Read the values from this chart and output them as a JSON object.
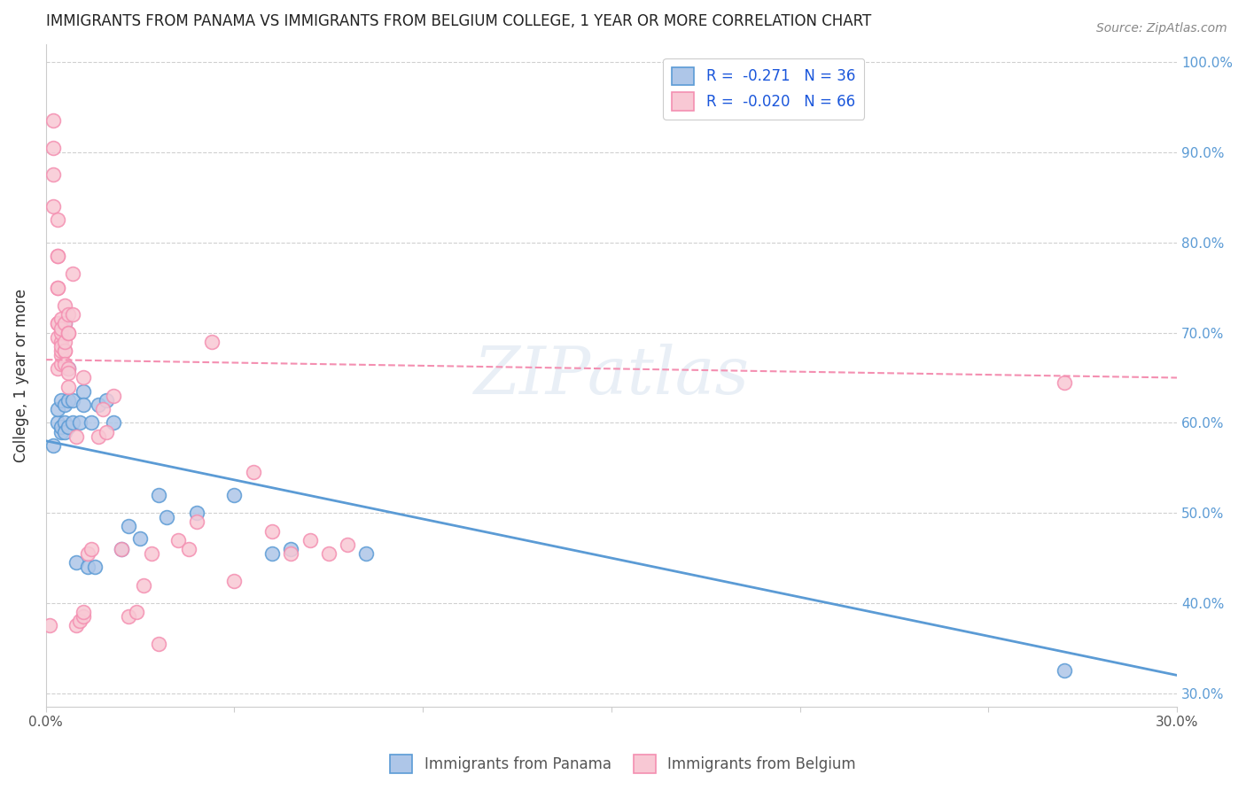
{
  "title": "IMMIGRANTS FROM PANAMA VS IMMIGRANTS FROM BELGIUM COLLEGE, 1 YEAR OR MORE CORRELATION CHART",
  "source": "Source: ZipAtlas.com",
  "ylabel": "College, 1 year or more",
  "xmin": 0.0,
  "xmax": 0.3,
  "ymin": 0.285,
  "ymax": 1.02,
  "yticks": [
    0.3,
    0.4,
    0.5,
    0.6,
    0.7,
    0.8,
    0.9,
    1.0
  ],
  "ytick_labels": [
    "30.0%",
    "40.0%",
    "50.0%",
    "60.0%",
    "70.0%",
    "80.0%",
    "90.0%",
    "100.0%"
  ],
  "xticks": [
    0.0,
    0.05,
    0.1,
    0.15,
    0.2,
    0.25,
    0.3
  ],
  "xtick_labels": [
    "0.0%",
    "",
    "",
    "",
    "",
    "",
    "30.0%"
  ],
  "blue_scatter_x": [
    0.002,
    0.003,
    0.003,
    0.004,
    0.004,
    0.004,
    0.005,
    0.005,
    0.005,
    0.005,
    0.006,
    0.006,
    0.006,
    0.007,
    0.007,
    0.008,
    0.009,
    0.01,
    0.01,
    0.011,
    0.012,
    0.013,
    0.014,
    0.016,
    0.018,
    0.02,
    0.022,
    0.025,
    0.03,
    0.032,
    0.04,
    0.05,
    0.06,
    0.065,
    0.085,
    0.27
  ],
  "blue_scatter_y": [
    0.575,
    0.6,
    0.615,
    0.59,
    0.625,
    0.595,
    0.6,
    0.59,
    0.62,
    0.71,
    0.66,
    0.625,
    0.595,
    0.6,
    0.625,
    0.445,
    0.6,
    0.635,
    0.62,
    0.44,
    0.6,
    0.44,
    0.62,
    0.625,
    0.6,
    0.46,
    0.485,
    0.472,
    0.52,
    0.495,
    0.5,
    0.52,
    0.455,
    0.46,
    0.455,
    0.325
  ],
  "pink_scatter_x": [
    0.001,
    0.002,
    0.002,
    0.002,
    0.002,
    0.003,
    0.003,
    0.003,
    0.003,
    0.003,
    0.003,
    0.003,
    0.003,
    0.003,
    0.004,
    0.004,
    0.004,
    0.004,
    0.004,
    0.004,
    0.004,
    0.004,
    0.005,
    0.005,
    0.005,
    0.005,
    0.005,
    0.005,
    0.006,
    0.006,
    0.006,
    0.006,
    0.006,
    0.006,
    0.007,
    0.007,
    0.008,
    0.008,
    0.009,
    0.01,
    0.01,
    0.01,
    0.011,
    0.012,
    0.014,
    0.015,
    0.016,
    0.018,
    0.02,
    0.022,
    0.024,
    0.026,
    0.028,
    0.03,
    0.035,
    0.038,
    0.04,
    0.044,
    0.05,
    0.055,
    0.06,
    0.065,
    0.07,
    0.075,
    0.08,
    0.27
  ],
  "pink_scatter_y": [
    0.375,
    0.905,
    0.875,
    0.935,
    0.84,
    0.825,
    0.785,
    0.75,
    0.785,
    0.75,
    0.71,
    0.71,
    0.695,
    0.66,
    0.715,
    0.69,
    0.665,
    0.675,
    0.7,
    0.68,
    0.685,
    0.705,
    0.73,
    0.71,
    0.68,
    0.68,
    0.69,
    0.665,
    0.7,
    0.66,
    0.7,
    0.72,
    0.655,
    0.64,
    0.765,
    0.72,
    0.585,
    0.375,
    0.38,
    0.65,
    0.385,
    0.39,
    0.455,
    0.46,
    0.585,
    0.615,
    0.59,
    0.63,
    0.46,
    0.385,
    0.39,
    0.42,
    0.455,
    0.355,
    0.47,
    0.46,
    0.49,
    0.69,
    0.425,
    0.545,
    0.48,
    0.455,
    0.47,
    0.455,
    0.465,
    0.645
  ],
  "blue_line_x": [
    0.0,
    0.3
  ],
  "blue_line_y": [
    0.58,
    0.32
  ],
  "pink_line_x": [
    0.0,
    0.3
  ],
  "pink_line_y": [
    0.67,
    0.65
  ],
  "blue_color": "#5b9bd5",
  "pink_color": "#f48fb1",
  "blue_fill": "#aec6e8",
  "pink_fill": "#f8c8d4",
  "watermark": "ZIPatlas",
  "background_color": "#ffffff",
  "grid_color": "#d0d0d0",
  "right_axis_color": "#5b9bd5",
  "legend_line1": "R =  -0.271   N = 36",
  "legend_line2": "R =  -0.020   N = 66"
}
